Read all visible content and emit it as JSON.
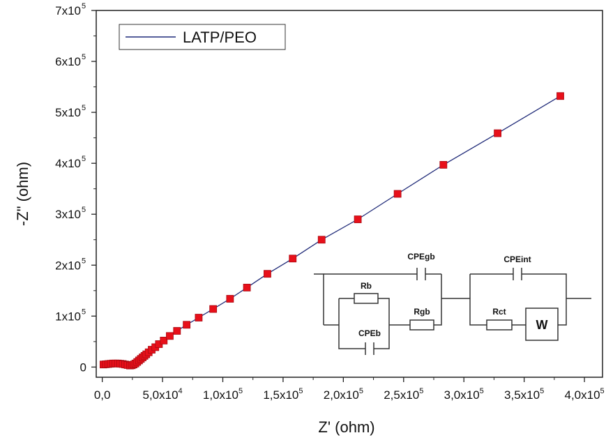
{
  "chart_data": {
    "type": "scatter",
    "series": [
      {
        "name": "LATP/PEO",
        "marker": "square",
        "marker_color": "#e8101a",
        "line_color": "#1f2a78",
        "x": [
          1000,
          3000,
          5000,
          7000,
          9000,
          11000,
          13000,
          15000,
          17000,
          19000,
          21000,
          23000,
          24500,
          26000,
          27500,
          29000,
          30500,
          32000,
          33500,
          35000,
          36500,
          38500,
          41000,
          44000,
          47000,
          51000,
          56000,
          62000,
          70000,
          80000,
          92000,
          106000,
          120000,
          137000,
          158000,
          182000,
          212000,
          245000,
          283000,
          328000,
          380000
        ],
        "y": [
          5000,
          5500,
          6000,
          6500,
          7000,
          7000,
          7000,
          6500,
          6000,
          5000,
          4000,
          3000,
          3500,
          5000,
          7000,
          10000,
          13000,
          16000,
          19000,
          22000,
          25000,
          29000,
          34000,
          39000,
          45000,
          52000,
          61000,
          71000,
          83000,
          97000,
          114000,
          134000,
          156000,
          183000,
          213000,
          250000,
          290000,
          340000,
          397000,
          459000,
          532000
        ]
      }
    ],
    "xlabel": "Z' (ohm)",
    "ylabel": "-Z\" (ohm)",
    "xlim": [
      -5000,
      415000
    ],
    "ylim": [
      -20000,
      700000
    ],
    "x_ticks": [
      0,
      50000,
      100000,
      150000,
      200000,
      250000,
      300000,
      350000,
      400000
    ],
    "x_tick_labels": [
      "0,0",
      "5,0x10",
      "1,0x10",
      "1,5x10",
      "2,0x10",
      "2,5x10",
      "3,0x10",
      "3,5x10",
      "4,0x10"
    ],
    "x_tick_exponents": [
      "",
      "4",
      "5",
      "5",
      "5",
      "5",
      "5",
      "5",
      "5"
    ],
    "y_ticks": [
      0,
      100000,
      200000,
      300000,
      400000,
      500000,
      600000,
      700000
    ],
    "y_tick_labels": [
      "0",
      "1x10",
      "2x10",
      "3x10",
      "4x10",
      "5x10",
      "6x10",
      "7x10"
    ],
    "y_tick_exponents": [
      "",
      "5",
      "5",
      "5",
      "5",
      "5",
      "5",
      "5"
    ],
    "grid": false,
    "legend_position": "top-left",
    "legend_label": "LATP/PEO"
  },
  "inset": {
    "type": "equivalent-circuit",
    "labels": {
      "cpegb": "CPEgb",
      "rb": "Rb",
      "rgb": "Rgb",
      "cpeb": "CPEb",
      "cpeint": "CPEint",
      "rct": "Rct",
      "w": "W"
    }
  }
}
